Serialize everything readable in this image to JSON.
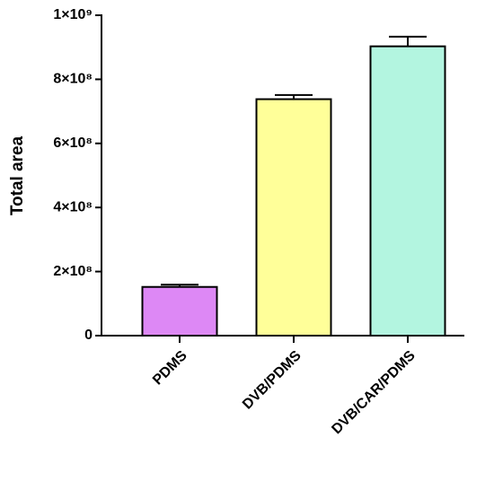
{
  "chart_data": {
    "type": "bar",
    "y_label": "Total area",
    "categories": [
      "PDMS",
      "DVB/PDMS",
      "DVB/CAR/PDMS"
    ],
    "values": [
      152000000,
      738000000,
      903000000
    ],
    "errors": [
      7000000,
      13000000,
      30000000
    ],
    "colors": [
      "#dd88f5",
      "#ffff99",
      "#b3f5e0"
    ],
    "ylim": [
      0,
      1000000000
    ],
    "yticks": [
      0,
      {
        "value": 200000000,
        "label": "2×10⁸"
      },
      {
        "value": 400000000,
        "label": "4×10⁸"
      },
      {
        "value": 600000000,
        "label": "6×10⁸"
      },
      {
        "value": 800000000,
        "label": "8×10⁸"
      },
      {
        "value": 1000000000,
        "label": "1×10⁹"
      }
    ]
  }
}
